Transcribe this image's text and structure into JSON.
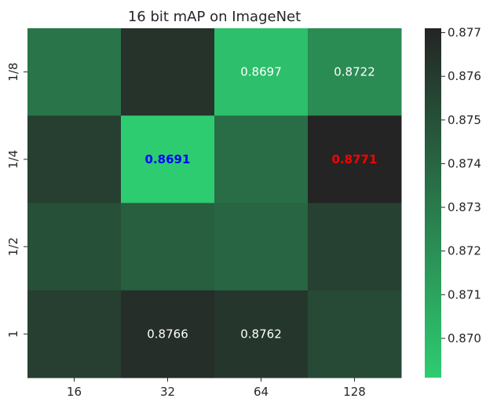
{
  "chart_data": {
    "type": "heatmap",
    "title": "16 bit mAP on ImageNet",
    "x_categories": [
      "16",
      "32",
      "64",
      "128"
    ],
    "y_categories": [
      "1/8",
      "1/4",
      "1/2",
      "1"
    ],
    "values": [
      [
        0.8733,
        0.8764,
        0.8697,
        0.8722
      ],
      [
        0.8758,
        0.8691,
        0.8736,
        0.8771
      ],
      [
        0.875,
        0.8743,
        0.874,
        0.8757
      ],
      [
        0.8758,
        0.8766,
        0.8762,
        0.8753
      ]
    ],
    "annotations": [
      {
        "row": 0,
        "col": 2,
        "text": "0.8697",
        "color": "#ffffff",
        "bold": false
      },
      {
        "row": 0,
        "col": 3,
        "text": "0.8722",
        "color": "#ffffff",
        "bold": false
      },
      {
        "row": 1,
        "col": 1,
        "text": "0.8691",
        "color": "#0000ff",
        "bold": true
      },
      {
        "row": 1,
        "col": 3,
        "text": "0.8771",
        "color": "#ff0000",
        "bold": true
      },
      {
        "row": 3,
        "col": 1,
        "text": "0.8766",
        "color": "#ffffff",
        "bold": false
      },
      {
        "row": 3,
        "col": 2,
        "text": "0.8762",
        "color": "#ffffff",
        "bold": false
      }
    ],
    "colorbar": {
      "min": 0.8691,
      "max": 0.8771,
      "ticks": [
        "0.870",
        "0.871",
        "0.872",
        "0.873",
        "0.874",
        "0.875",
        "0.876",
        "0.877"
      ],
      "tick_values": [
        0.87,
        0.871,
        0.872,
        0.873,
        0.874,
        0.875,
        0.876,
        0.877
      ],
      "color_low": "#2ecc71",
      "color_high": "#242424"
    }
  }
}
